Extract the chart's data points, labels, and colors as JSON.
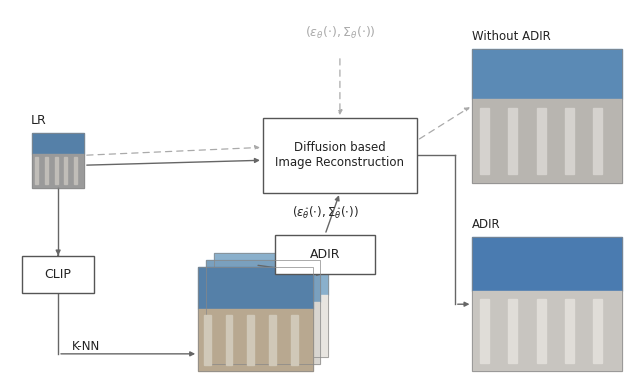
{
  "bg_color": "#ffffff",
  "box_edge_color": "#555555",
  "arrow_color": "#666666",
  "dashed_arrow_color": "#aaaaaa",
  "text_color": "#222222",
  "diffusion_label_line1": "Diffusion based",
  "diffusion_label_line2": "Image Reconstruction",
  "adir_label": "ADIR",
  "clip_label": "CLIP",
  "lr_label": "LR",
  "knn_label": "K-NN",
  "without_adir_label": "Without ADIR",
  "adir_result_label": "ADIR",
  "top_formula": "$(\\epsilon_{\\theta}(\\cdot), \\Sigma_{\\theta}(\\cdot))$",
  "mid_formula": "$(\\epsilon_{\\hat{\\theta}}(\\cdot), \\Sigma_{\\hat{\\theta}}(\\cdot))$"
}
